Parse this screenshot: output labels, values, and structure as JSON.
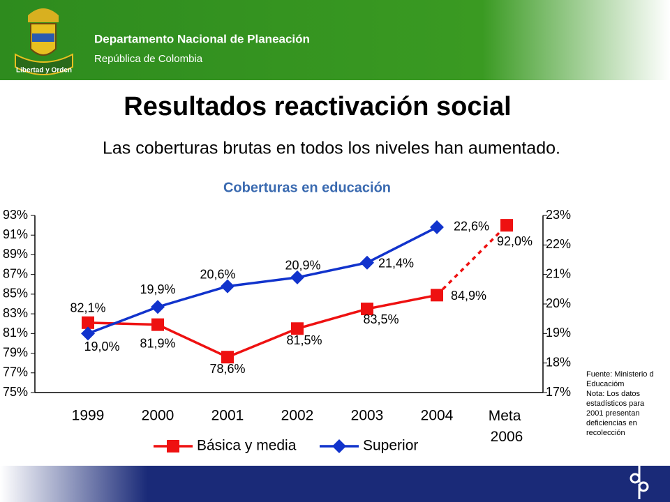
{
  "header": {
    "org": "Departamento Nacional de Planeación",
    "country": "República de Colombia",
    "motto": "Libertad y Orden"
  },
  "title": "Resultados reactivación social",
  "subtitle": "Las coberturas brutas en todos los niveles han aumentado.",
  "chart_data": {
    "type": "line",
    "title": "Coberturas en educación",
    "categories": [
      "1999",
      "2000",
      "2001",
      "2002",
      "2003",
      "2004",
      "Meta 2006"
    ],
    "series": [
      {
        "name": "Básica y media",
        "color": "#ee1111",
        "marker": "square",
        "last_segment_style": "dashed",
        "values": [
          82.1,
          81.9,
          78.6,
          81.5,
          83.5,
          84.9,
          92.0
        ],
        "value_labels": [
          "82,1%",
          "81,9%",
          "78,6%",
          "81,5%",
          "83,5%",
          "84,9%",
          "92,0%"
        ]
      },
      {
        "name": "Superior",
        "color": "#1133cc",
        "marker": "diamond",
        "axis": "y2",
        "values": [
          19.0,
          19.9,
          20.6,
          20.9,
          21.4,
          22.6,
          null
        ],
        "value_labels": [
          "19,0%",
          "19,9%",
          "20,6%",
          "20,9%",
          "21,4%",
          "22,6%",
          null
        ]
      }
    ],
    "ylim": [
      75,
      93
    ],
    "yticks": [
      {
        "value": 75,
        "label": "75%"
      },
      {
        "value": 77,
        "label": "77%"
      },
      {
        "value": 79,
        "label": "79%"
      },
      {
        "value": 81,
        "label": "81%"
      },
      {
        "value": 83,
        "label": "83%"
      },
      {
        "value": 85,
        "label": "85%"
      },
      {
        "value": 87,
        "label": "87%"
      },
      {
        "value": 89,
        "label": "89%"
      },
      {
        "value": 91,
        "label": "91%"
      },
      {
        "value": 93,
        "label": "93%"
      }
    ],
    "y2lim": [
      17,
      23
    ],
    "y2ticks": [
      {
        "value": 17,
        "label": "17%"
      },
      {
        "value": 18,
        "label": "18%"
      },
      {
        "value": 19,
        "label": "19%"
      },
      {
        "value": 20,
        "label": "20%"
      },
      {
        "value": 21,
        "label": "21%"
      },
      {
        "value": 22,
        "label": "22%"
      },
      {
        "value": 23,
        "label": "23%"
      }
    ],
    "legend": "bottom",
    "note": [
      "Fuente:  Ministerio d",
      "Educacióm",
      "Nota: Los datos",
      "estadísticos para",
      "2001 presentan",
      "deficiencias en",
      "recolección"
    ]
  }
}
